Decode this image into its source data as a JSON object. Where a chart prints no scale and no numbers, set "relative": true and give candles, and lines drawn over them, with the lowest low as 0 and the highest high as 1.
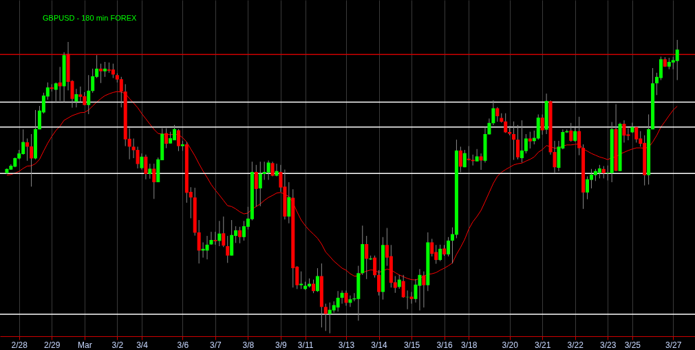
{
  "chart_data": {
    "type": "candlestick",
    "title": "GBPUSD - 180 min  FOREX",
    "relative": true,
    "grid": "x",
    "colors": [
      "#00ff00",
      "#00ff00",
      "#00ff00",
      "#00ff00",
      "#00ff00",
      "#ff0000",
      "#ff0000",
      "#00ff00",
      "#00ff00",
      "#00ff00",
      "#00ff00",
      "#ff0000",
      "#00ff00",
      "#ff0000",
      "#00ff00",
      "#ff0000",
      "#ff0000",
      "#00ff00",
      "#ff0000",
      "#ff0000",
      "#00ff00",
      "#00ff00",
      "#00ff00",
      "#ff0000",
      "#00ff00",
      "#ff0000",
      "#ff0000",
      "#ff0000",
      "#ff0000",
      "#ff0000",
      "#ff0000",
      "#ff0000",
      "#ff0000",
      "#00ff00",
      "#ff0000",
      "#00ff00",
      "#ff0000",
      "#00ff00",
      "#00ff00",
      "#ff0000",
      "#00ff00",
      "#00ff00",
      "#ff0000",
      "#00ff00",
      "#ff0000",
      "#ff0000",
      "#ff0000",
      "#ff0000",
      "#00ff00",
      "#00ff00",
      "#00ff00",
      "#ff0000",
      "#00ff00",
      "#ff0000",
      "#ff0000",
      "#00ff00",
      "#00ff00",
      "#ff0000",
      "#00ff00",
      "#00ff00",
      "#00ff00",
      "#ff0000",
      "#00ff00",
      "#00ff00",
      "#00ff00",
      "#ff0000",
      "#00ff00",
      "#ff0000",
      "#ff0000",
      "#00ff00",
      "#ff0000",
      "#ff0000",
      "#00ff00",
      "#00ff00",
      "#00ff00",
      "#ff0000",
      "#00ff00",
      "#ff0000",
      "#ff0000",
      "#00ff00",
      "#00ff00",
      "#00ff00",
      "#00ff00",
      "#ff0000",
      "#00ff00",
      "#00ff00",
      "#00ff00",
      "#00ff00",
      "#ff0000",
      "#00ff00",
      "#ff0000",
      "#ff0000",
      "#00ff00",
      "#ff0000",
      "#ff0000",
      "#ff0000",
      "#00ff00",
      "#ff0000",
      "#00ff00",
      "#ff0000",
      "#00ff00",
      "#00ff00",
      "#ff0000",
      "#00ff00",
      "#ff0000",
      "#ff0000",
      "#00ff00",
      "#ff0000",
      "#00ff00",
      "#00ff00",
      "#00ff00",
      "#ff0000",
      "#00ff00",
      "#ff0000",
      "#ff0000",
      "#00ff00",
      "#ff0000",
      "#00ff00",
      "#00ff00",
      "#00ff00",
      "#ff0000",
      "#ff0000",
      "#ff0000",
      "#ff0000",
      "#ff0000",
      "#ff0000",
      "#00ff00",
      "#00ff00",
      "#ff0000",
      "#00ff00",
      "#00ff00",
      "#ff0000",
      "#00ff00",
      "#ff0000",
      "#ff0000",
      "#00ff00",
      "#00ff00",
      "#00ff00",
      "#ff0000",
      "#00ff00",
      "#ff0000",
      "#ff0000",
      "#00ff00",
      "#00ff00",
      "#00ff00",
      "#00ff00",
      "#ff0000",
      "#00ff00",
      "#00ff00",
      "#ff0000",
      "#00ff00",
      "#ff0000",
      "#ff0000",
      "#00ff00",
      "#ff0000",
      "#ff0000",
      "#ff0000",
      "#00ff00",
      "#00ff00",
      "#00ff00",
      "#00ff00",
      "#ff0000",
      "#00ff00",
      "#00ff00",
      "#00ff00"
    ],
    "categories": [
      null,
      null,
      null,
      "2/28",
      null,
      null,
      null,
      null,
      null,
      null,
      null,
      "2/29",
      null,
      null,
      null,
      null,
      null,
      null,
      null,
      "Mar",
      null,
      null,
      null,
      null,
      null,
      null,
      null,
      "3/2",
      null,
      null,
      null,
      null,
      null,
      "3/4",
      null,
      null,
      null,
      null,
      null,
      null,
      null,
      null,
      null,
      "3/6",
      null,
      null,
      null,
      null,
      null,
      null,
      null,
      "3/7",
      null,
      null,
      null,
      null,
      null,
      null,
      null,
      "3/8",
      null,
      null,
      null,
      null,
      null,
      null,
      null,
      "3/9",
      null,
      null,
      null,
      null,
      null,
      "3/11",
      null,
      null,
      null,
      null,
      null,
      null,
      null,
      null,
      null,
      "3/13",
      null,
      null,
      null,
      null,
      null,
      null,
      null,
      "3/14",
      null,
      null,
      null,
      null,
      null,
      null,
      null,
      "3/15",
      null,
      null,
      null,
      null,
      null,
      null,
      null,
      "3/16",
      null,
      null,
      null,
      null,
      null,
      "3/18",
      null,
      null,
      null,
      null,
      null,
      null,
      null,
      null,
      null,
      "3/20",
      null,
      null,
      null,
      null,
      null,
      null,
      null,
      "3/21",
      null,
      null,
      null,
      null,
      null,
      null,
      null,
      "3/22",
      null,
      null,
      null,
      null,
      null,
      null,
      null,
      "3/23",
      null,
      null,
      null,
      null,
      null,
      "3/25",
      null,
      null,
      null,
      null,
      null,
      null,
      null,
      null,
      null,
      "3/27",
      null
    ],
    "ohlc": [
      [
        0.546,
        0.562,
        0.543,
        0.56
      ],
      [
        0.558,
        0.576,
        0.557,
        0.571
      ],
      [
        0.568,
        0.599,
        0.566,
        0.597
      ],
      [
        0.596,
        0.625,
        0.593,
        0.613
      ],
      [
        0.611,
        0.695,
        0.609,
        0.652
      ],
      [
        0.651,
        0.664,
        0.588,
        0.636
      ],
      [
        0.637,
        0.679,
        0.5,
        0.596
      ],
      [
        0.596,
        0.761,
        0.593,
        0.696
      ],
      [
        0.695,
        0.775,
        0.695,
        0.759
      ],
      [
        0.753,
        0.82,
        0.749,
        0.81
      ],
      [
        0.807,
        0.855,
        0.796,
        0.838
      ],
      [
        0.838,
        0.849,
        0.824,
        0.833
      ],
      [
        0.83,
        0.855,
        0.785,
        0.852
      ],
      [
        0.855,
        0.908,
        0.792,
        0.842
      ],
      [
        0.842,
        0.958,
        0.788,
        0.948
      ],
      [
        0.952,
        0.993,
        0.828,
        0.857
      ],
      [
        0.86,
        0.863,
        0.769,
        0.799
      ],
      [
        0.79,
        0.833,
        0.77,
        0.815
      ],
      [
        0.814,
        0.841,
        0.788,
        0.806
      ],
      [
        0.808,
        0.822,
        0.777,
        0.778
      ],
      [
        0.778,
        0.88,
        0.747,
        0.827
      ],
      [
        0.826,
        0.902,
        0.82,
        0.876
      ],
      [
        0.874,
        0.948,
        0.87,
        0.902
      ],
      [
        0.902,
        0.919,
        0.853,
        0.893
      ],
      [
        0.893,
        0.925,
        0.874,
        0.902
      ],
      [
        0.899,
        0.923,
        0.888,
        0.895
      ],
      [
        0.899,
        0.919,
        0.87,
        0.882
      ],
      [
        0.88,
        0.886,
        0.855,
        0.865
      ],
      [
        0.866,
        0.874,
        0.77,
        0.824
      ],
      [
        0.824,
        0.849,
        0.638,
        0.661
      ],
      [
        0.663,
        0.699,
        0.593,
        0.636
      ],
      [
        0.636,
        0.664,
        0.597,
        0.624
      ],
      [
        0.625,
        0.636,
        0.562,
        0.577
      ],
      [
        0.563,
        0.613,
        0.558,
        0.602
      ],
      [
        0.602,
        0.609,
        0.525,
        0.543
      ],
      [
        0.543,
        0.578,
        0.527,
        0.561
      ],
      [
        0.561,
        0.578,
        0.458,
        0.515
      ],
      [
        0.515,
        0.599,
        0.515,
        0.593
      ],
      [
        0.59,
        0.699,
        0.59,
        0.68
      ],
      [
        0.682,
        0.699,
        0.631,
        0.646
      ],
      [
        0.647,
        0.687,
        0.647,
        0.665
      ],
      [
        0.658,
        0.71,
        0.658,
        0.696
      ],
      [
        0.692,
        0.696,
        0.621,
        0.638
      ],
      [
        0.638,
        0.656,
        0.622,
        0.644
      ],
      [
        0.644,
        0.652,
        0.445,
        0.479
      ],
      [
        0.482,
        0.498,
        0.392,
        0.463
      ],
      [
        0.463,
        0.496,
        0.333,
        0.343
      ],
      [
        0.344,
        0.386,
        0.238,
        0.282
      ],
      [
        0.282,
        0.31,
        0.258,
        0.288
      ],
      [
        0.282,
        0.332,
        0.252,
        0.302
      ],
      [
        0.303,
        0.346,
        0.302,
        0.318
      ],
      [
        0.318,
        0.346,
        0.302,
        0.314
      ],
      [
        0.315,
        0.383,
        0.297,
        0.34
      ],
      [
        0.341,
        0.398,
        0.294,
        0.299
      ],
      [
        0.297,
        0.332,
        0.24,
        0.265
      ],
      [
        0.265,
        0.386,
        0.265,
        0.335
      ],
      [
        0.332,
        0.365,
        0.308,
        0.351
      ],
      [
        0.351,
        0.363,
        0.307,
        0.328
      ],
      [
        0.328,
        0.383,
        0.316,
        0.365
      ],
      [
        0.363,
        0.431,
        0.354,
        0.391
      ],
      [
        0.389,
        0.585,
        0.385,
        0.55
      ],
      [
        0.55,
        0.574,
        0.432,
        0.492
      ],
      [
        0.494,
        0.585,
        0.433,
        0.544
      ],
      [
        0.543,
        0.585,
        0.523,
        0.55
      ],
      [
        0.548,
        0.589,
        0.523,
        0.582
      ],
      [
        0.58,
        0.585,
        0.535,
        0.537
      ],
      [
        0.537,
        0.578,
        0.535,
        0.553
      ],
      [
        0.55,
        0.574,
        0.482,
        0.497
      ],
      [
        0.5,
        0.558,
        0.388,
        0.398
      ],
      [
        0.398,
        0.515,
        0.375,
        0.464
      ],
      [
        0.462,
        0.491,
        0.156,
        0.222
      ],
      [
        0.227,
        0.229,
        0.151,
        0.164
      ],
      [
        0.164,
        0.211,
        0.151,
        0.169
      ],
      [
        0.151,
        0.176,
        0.148,
        0.162
      ],
      [
        0.16,
        0.187,
        0.156,
        0.169
      ],
      [
        0.169,
        0.183,
        0.137,
        0.144
      ],
      [
        0.144,
        0.222,
        0.141,
        0.195
      ],
      [
        0.195,
        0.238,
        0.02,
        0.09
      ],
      [
        0.09,
        0.101,
        0.008,
        0.066
      ],
      [
        0.066,
        0.105,
        0.0,
        0.08
      ],
      [
        0.078,
        0.109,
        0.07,
        0.096
      ],
      [
        0.088,
        0.144,
        0.074,
        0.121
      ],
      [
        0.121,
        0.146,
        0.101,
        0.138
      ],
      [
        0.138,
        0.146,
        0.094,
        0.104
      ],
      [
        0.104,
        0.129,
        0.09,
        0.116
      ],
      [
        0.116,
        0.137,
        0.109,
        0.119
      ],
      [
        0.117,
        0.23,
        0.043,
        0.205
      ],
      [
        0.205,
        0.367,
        0.199,
        0.304
      ],
      [
        0.304,
        0.332,
        0.185,
        0.254
      ],
      [
        0.252,
        0.265,
        0.25,
        0.255
      ],
      [
        0.258,
        0.265,
        0.19,
        0.198
      ],
      [
        0.199,
        0.215,
        0.129,
        0.141
      ],
      [
        0.141,
        0.328,
        0.115,
        0.301
      ],
      [
        0.301,
        0.359,
        0.23,
        0.258
      ],
      [
        0.263,
        0.301,
        0.156,
        0.172
      ],
      [
        0.174,
        0.195,
        0.138,
        0.155
      ],
      [
        0.158,
        0.199,
        0.152,
        0.183
      ],
      [
        0.178,
        0.199,
        0.121,
        0.123
      ],
      [
        0.123,
        0.146,
        0.082,
        0.124
      ],
      [
        0.125,
        0.141,
        0.101,
        0.117
      ],
      [
        0.117,
        0.185,
        0.105,
        0.166
      ],
      [
        0.162,
        0.219,
        0.078,
        0.199
      ],
      [
        0.197,
        0.211,
        0.088,
        0.164
      ],
      [
        0.164,
        0.344,
        0.144,
        0.31
      ],
      [
        0.31,
        0.322,
        0.262,
        0.271
      ],
      [
        0.277,
        0.301,
        0.237,
        0.25
      ],
      [
        0.25,
        0.302,
        0.246,
        0.288
      ],
      [
        0.289,
        0.301,
        0.264,
        0.269
      ],
      [
        0.269,
        0.328,
        0.262,
        0.316
      ],
      [
        0.316,
        0.361,
        0.238,
        0.338
      ],
      [
        0.336,
        0.66,
        0.324,
        0.623
      ],
      [
        0.623,
        0.636,
        0.549,
        0.568
      ],
      [
        0.566,
        0.625,
        0.566,
        0.614
      ],
      [
        0.595,
        0.638,
        0.589,
        0.591
      ],
      [
        0.591,
        0.609,
        0.572,
        0.587
      ],
      [
        0.586,
        0.628,
        0.586,
        0.603
      ],
      [
        0.603,
        0.613,
        0.557,
        0.589
      ],
      [
        0.588,
        0.703,
        0.582,
        0.679
      ],
      [
        0.678,
        0.732,
        0.678,
        0.717
      ],
      [
        0.716,
        0.794,
        0.709,
        0.767
      ],
      [
        0.767,
        0.771,
        0.721,
        0.74
      ],
      [
        0.734,
        0.75,
        0.718,
        0.721
      ],
      [
        0.722,
        0.75,
        0.683,
        0.685
      ],
      [
        0.686,
        0.707,
        0.675,
        0.68
      ],
      [
        0.679,
        0.722,
        0.591,
        0.66
      ],
      [
        0.66,
        0.71,
        0.593,
        0.6
      ],
      [
        0.597,
        0.726,
        0.582,
        0.623
      ],
      [
        0.621,
        0.679,
        0.613,
        0.664
      ],
      [
        0.664,
        0.687,
        0.63,
        0.654
      ],
      [
        0.655,
        0.691,
        0.644,
        0.666
      ],
      [
        0.664,
        0.746,
        0.66,
        0.735
      ],
      [
        0.735,
        0.746,
        0.677,
        0.692
      ],
      [
        0.694,
        0.817,
        0.679,
        0.792
      ],
      [
        0.791,
        0.794,
        0.609,
        0.617
      ],
      [
        0.618,
        0.656,
        0.546,
        0.566
      ],
      [
        0.564,
        0.656,
        0.552,
        0.636
      ],
      [
        0.63,
        0.695,
        0.627,
        0.686
      ],
      [
        0.685,
        0.695,
        0.683,
        0.689
      ],
      [
        0.691,
        0.717,
        0.653,
        0.656
      ],
      [
        0.656,
        0.703,
        0.653,
        0.689
      ],
      [
        0.689,
        0.738,
        0.607,
        0.631
      ],
      [
        0.632,
        0.644,
        0.424,
        0.48
      ],
      [
        0.48,
        0.535,
        0.457,
        0.525
      ],
      [
        0.523,
        0.56,
        0.494,
        0.541
      ],
      [
        0.539,
        0.56,
        0.519,
        0.553
      ],
      [
        0.547,
        0.574,
        0.528,
        0.562
      ],
      [
        0.56,
        0.57,
        0.528,
        0.546
      ],
      [
        0.546,
        0.572,
        0.521,
        0.548
      ],
      [
        0.546,
        0.72,
        0.515,
        0.696
      ],
      [
        0.696,
        0.781,
        0.552,
        0.554
      ],
      [
        0.553,
        0.718,
        0.552,
        0.714
      ],
      [
        0.714,
        0.726,
        0.65,
        0.674
      ],
      [
        0.678,
        0.699,
        0.658,
        0.673
      ],
      [
        0.685,
        0.718,
        0.683,
        0.703
      ],
      [
        0.703,
        0.706,
        0.65,
        0.661
      ],
      [
        0.664,
        0.689,
        0.636,
        0.646
      ],
      [
        0.649,
        0.675,
        0.504,
        0.539
      ],
      [
        0.539,
        0.746,
        0.507,
        0.696
      ],
      [
        0.695,
        0.904,
        0.695,
        0.852
      ],
      [
        0.852,
        0.888,
        0.812,
        0.874
      ],
      [
        0.87,
        0.943,
        0.863,
        0.934
      ],
      [
        0.934,
        0.941,
        0.908,
        0.909
      ],
      [
        0.909,
        0.939,
        0.9,
        0.925
      ],
      [
        0.923,
        0.942,
        0.9,
        0.931
      ],
      [
        0.928,
        1.0,
        0.863,
        0.967
      ]
    ],
    "series": [
      {
        "type": "line",
        "color": "#ff0000",
        "values": [
          0.539,
          0.541,
          0.546,
          0.552,
          0.562,
          0.57,
          0.571,
          0.578,
          0.593,
          0.621,
          0.648,
          0.671,
          0.691,
          0.706,
          0.726,
          0.734,
          0.742,
          0.747,
          0.752,
          0.753,
          0.761,
          0.775,
          0.788,
          0.8,
          0.81,
          0.816,
          0.821,
          0.824,
          0.822,
          0.817,
          0.8,
          0.785,
          0.769,
          0.749,
          0.731,
          0.713,
          0.695,
          0.681,
          0.679,
          0.678,
          0.677,
          0.678,
          0.677,
          0.667,
          0.652,
          0.628,
          0.605,
          0.578,
          0.553,
          0.531,
          0.507,
          0.488,
          0.471,
          0.453,
          0.435,
          0.432,
          0.424,
          0.414,
          0.407,
          0.41,
          0.424,
          0.432,
          0.441,
          0.453,
          0.463,
          0.47,
          0.478,
          0.48,
          0.474,
          0.466,
          0.445,
          0.414,
          0.386,
          0.367,
          0.351,
          0.338,
          0.324,
          0.304,
          0.277,
          0.262,
          0.246,
          0.234,
          0.222,
          0.215,
          0.203,
          0.195,
          0.195,
          0.207,
          0.212,
          0.216,
          0.215,
          0.207,
          0.213,
          0.219,
          0.216,
          0.207,
          0.199,
          0.193,
          0.187,
          0.183,
          0.182,
          0.187,
          0.195,
          0.201,
          0.203,
          0.207,
          0.215,
          0.222,
          0.23,
          0.24,
          0.269,
          0.293,
          0.32,
          0.355,
          0.38,
          0.398,
          0.419,
          0.449,
          0.48,
          0.511,
          0.535,
          0.549,
          0.558,
          0.566,
          0.574,
          0.578,
          0.58,
          0.587,
          0.593,
          0.601,
          0.617,
          0.626,
          0.64,
          0.636,
          0.631,
          0.632,
          0.638,
          0.642,
          0.642,
          0.644,
          0.646,
          0.628,
          0.621,
          0.613,
          0.607,
          0.601,
          0.597,
          0.592,
          0.599,
          0.601,
          0.611,
          0.617,
          0.623,
          0.628,
          0.632,
          0.632,
          0.631,
          0.634,
          0.652,
          0.675,
          0.703,
          0.722,
          0.742,
          0.761,
          0.774
        ]
      }
    ],
    "ref_lines": [
      {
        "axis": "y",
        "value": 0.95,
        "label": null,
        "color": "#cc0000"
      },
      {
        "axis": "y",
        "value": 0.788,
        "label": null,
        "color": "#ffffff"
      },
      {
        "axis": "y",
        "value": 0.703,
        "label": null,
        "color": "#ffffff"
      },
      {
        "axis": "y",
        "value": 0.545,
        "label": null,
        "color": "#ffffff"
      },
      {
        "axis": "y",
        "value": 0.065,
        "label": null,
        "color": "#ffffff"
      }
    ]
  }
}
